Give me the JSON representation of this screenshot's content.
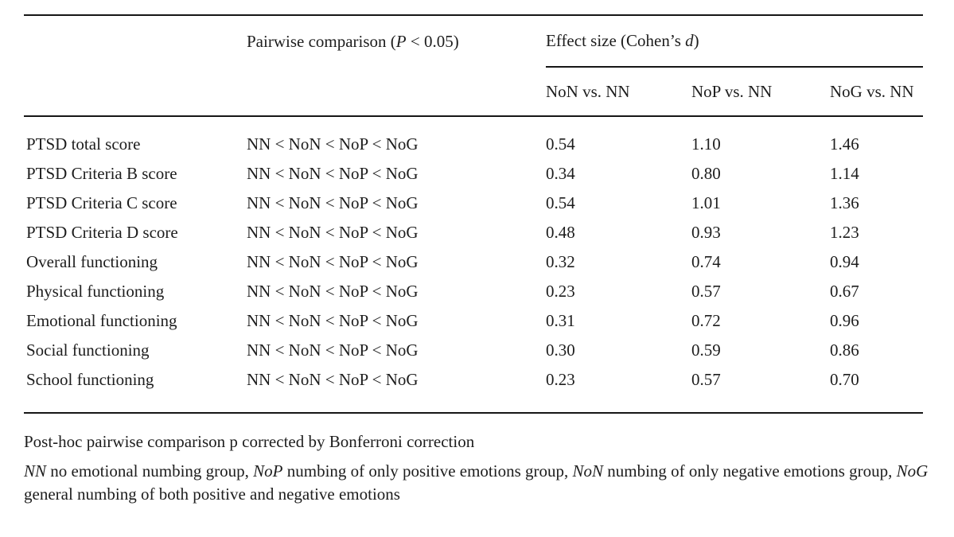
{
  "table": {
    "header": {
      "pairwise_pre": "Pairwise comparison (",
      "pairwise_italic": "P",
      "pairwise_post": " < 0.05)",
      "effect_pre": "Effect size (Cohen’s ",
      "effect_italic": "d",
      "effect_post": ")",
      "subcols": [
        "NoN vs. NN",
        "NoP vs. NN",
        "NoG vs. NN"
      ]
    },
    "rows": [
      {
        "label": "PTSD total score",
        "pairwise": "NN < NoN < NoP < NoG",
        "non_nn": "0.54",
        "nop_nn": "1.10",
        "nog_nn": "1.46"
      },
      {
        "label": "PTSD Criteria B score",
        "pairwise": "NN < NoN < NoP < NoG",
        "non_nn": "0.34",
        "nop_nn": "0.80",
        "nog_nn": "1.14"
      },
      {
        "label": "PTSD Criteria C score",
        "pairwise": "NN < NoN < NoP < NoG",
        "non_nn": "0.54",
        "nop_nn": "1.01",
        "nog_nn": "1.36"
      },
      {
        "label": "PTSD Criteria D score",
        "pairwise": "NN < NoN < NoP < NoG",
        "non_nn": "0.48",
        "nop_nn": "0.93",
        "nog_nn": "1.23"
      },
      {
        "label": "Overall functioning",
        "pairwise": "NN < NoN < NoP < NoG",
        "non_nn": "0.32",
        "nop_nn": "0.74",
        "nog_nn": "0.94"
      },
      {
        "label": "Physical functioning",
        "pairwise": "NN < NoN < NoP < NoG",
        "non_nn": "0.23",
        "nop_nn": "0.57",
        "nog_nn": "0.67"
      },
      {
        "label": "Emotional functioning",
        "pairwise": "NN < NoN < NoP < NoG",
        "non_nn": "0.31",
        "nop_nn": "0.72",
        "nog_nn": "0.96"
      },
      {
        "label": "Social functioning",
        "pairwise": "NN < NoN < NoP < NoG",
        "non_nn": "0.30",
        "nop_nn": "0.59",
        "nog_nn": "0.86"
      },
      {
        "label": "School functioning",
        "pairwise": "NN < NoN < NoP < NoG",
        "non_nn": "0.23",
        "nop_nn": "0.57",
        "nog_nn": "0.70"
      }
    ]
  },
  "footnotes": {
    "bonferroni": "Post-hoc pairwise comparison p corrected by Bonferroni correction",
    "groups_segments": [
      {
        "text": "NN",
        "italic": true
      },
      {
        "text": " no emotional numbing group, ",
        "italic": false
      },
      {
        "text": "NoP",
        "italic": true
      },
      {
        "text": " numbing of only positive emotions group, ",
        "italic": false
      },
      {
        "text": "NoN",
        "italic": true
      },
      {
        "text": " numbing of only negative emotions group, ",
        "italic": false
      },
      {
        "text": "NoG",
        "italic": true
      },
      {
        "text": " general numbing of both positive and negative emotions",
        "italic": false
      }
    ]
  },
  "colors": {
    "rule": "#161616",
    "text": "#1d1d1d",
    "background": "#ffffff"
  }
}
